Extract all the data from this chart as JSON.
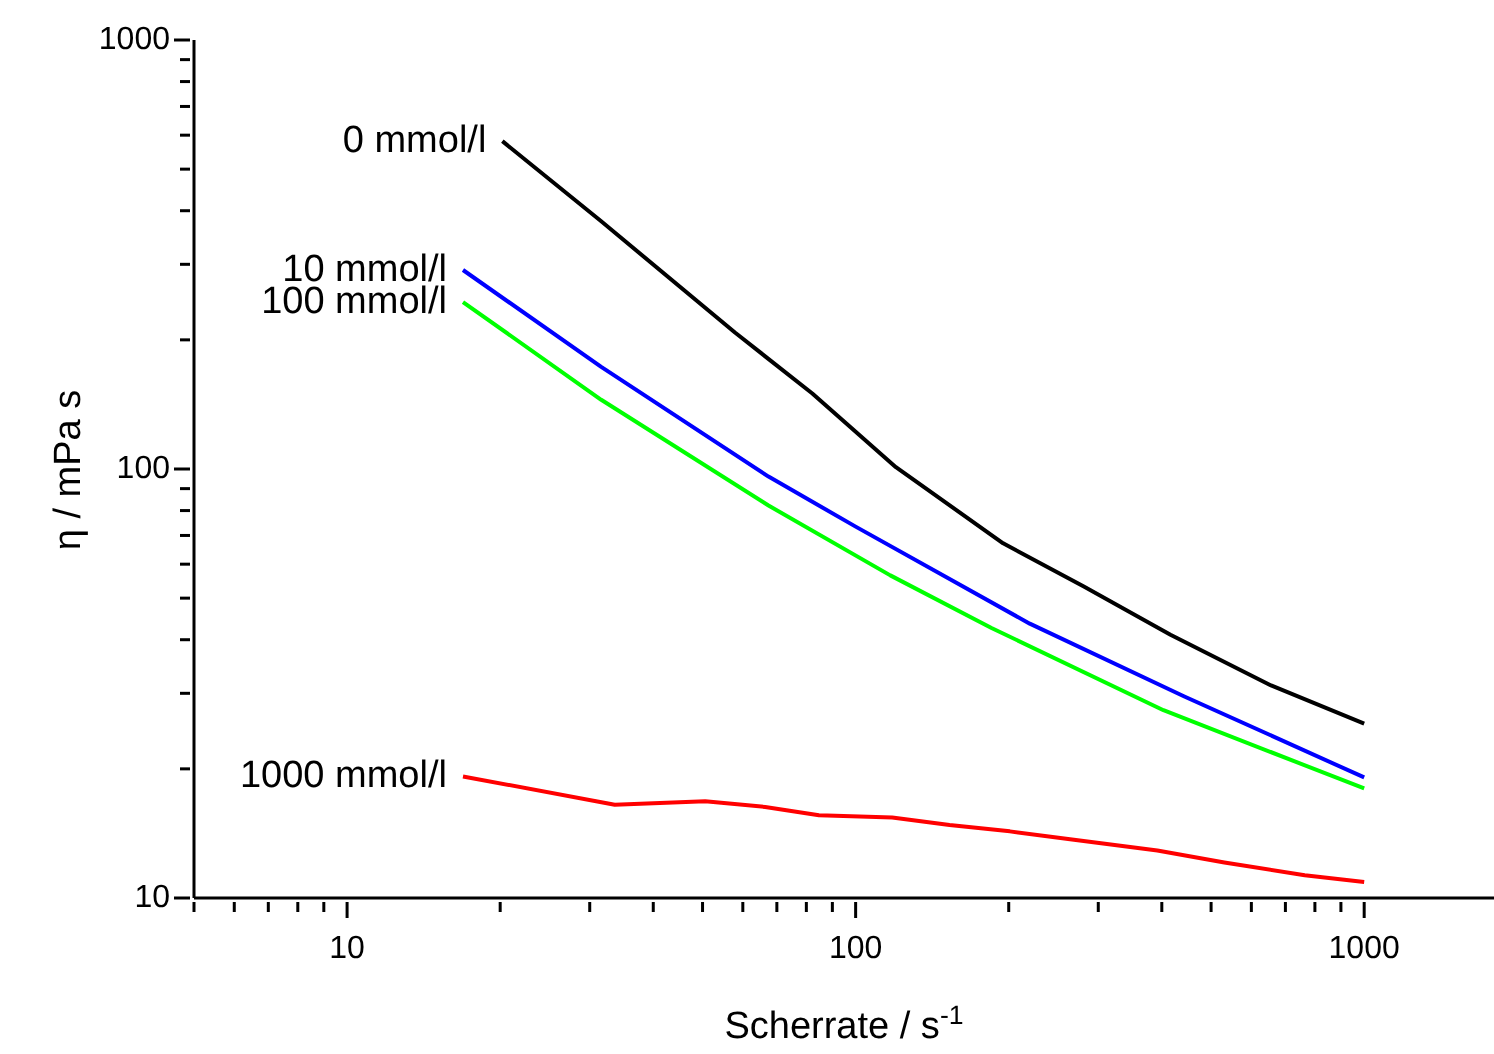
{
  "chart_data": {
    "type": "line",
    "xlabel": "Scherrate / s$^{-1}$",
    "ylabel": "η / mPa s",
    "log": "xy",
    "xlim": [
      5,
      1800
    ],
    "ylim": [
      10,
      1000
    ],
    "xticks": [
      {
        "value": 5,
        "label": null
      },
      {
        "value": 6,
        "label": null
      },
      {
        "value": 7,
        "label": null
      },
      {
        "value": 8,
        "label": null
      },
      {
        "value": 9,
        "label": null
      },
      10,
      {
        "value": 20,
        "label": null
      },
      {
        "value": 30,
        "label": null
      },
      {
        "value": 40,
        "label": null
      },
      {
        "value": 50,
        "label": null
      },
      {
        "value": 60,
        "label": null
      },
      {
        "value": 70,
        "label": null
      },
      {
        "value": 80,
        "label": null
      },
      {
        "value": 90,
        "label": null
      },
      100,
      {
        "value": 200,
        "label": null
      },
      {
        "value": 300,
        "label": null
      },
      {
        "value": 400,
        "label": null
      },
      {
        "value": 500,
        "label": null
      },
      {
        "value": 600,
        "label": null
      },
      {
        "value": 700,
        "label": null
      },
      {
        "value": 800,
        "label": null
      },
      {
        "value": 900,
        "label": null
      },
      1000
    ],
    "yticks": [
      10,
      {
        "value": 20,
        "label": null
      },
      {
        "value": 30,
        "label": null
      },
      {
        "value": 40,
        "label": null
      },
      {
        "value": 50,
        "label": null
      },
      {
        "value": 60,
        "label": null
      },
      {
        "value": 70,
        "label": null
      },
      {
        "value": 80,
        "label": null
      },
      {
        "value": 90,
        "label": null
      },
      100,
      {
        "value": 200,
        "label": null
      },
      {
        "value": 300,
        "label": null
      },
      {
        "value": 400,
        "label": null
      },
      {
        "value": 500,
        "label": null
      },
      {
        "value": 600,
        "label": null
      },
      {
        "value": 700,
        "label": null
      },
      {
        "value": 800,
        "label": null
      },
      {
        "value": 900,
        "label": null
      },
      1000
    ],
    "series": [
      {
        "name": "0 mmol/l",
        "color": "#000000",
        "x": [
          20.2,
          31.6,
          57.9,
          82.2,
          120,
          195,
          281,
          416,
          656,
          1000
        ],
        "values": [
          581,
          378,
          208,
          150,
          101,
          67.1,
          53.2,
          41.1,
          31.3,
          25.5
        ]
      },
      {
        "name": "10 mmol/l",
        "color": "#0000ff",
        "x": [
          16.9,
          31.6,
          67.4,
          100,
          220,
          443,
          1000
        ],
        "values": [
          291,
          173,
          96,
          73.4,
          43.6,
          29.5,
          19.1
        ]
      },
      {
        "name": "100 mmol/l",
        "color": "#00ff00",
        "x": [
          16.9,
          31.6,
          67.4,
          117,
          185,
          403,
          1000
        ],
        "values": [
          245,
          145,
          82.2,
          56.5,
          42.6,
          27.4,
          18
        ]
      },
      {
        "name": "1000 mmol/l",
        "color": "#ff0000",
        "x": [
          16.9,
          33.6,
          50.6,
          66.4,
          84.7,
          118,
          153,
          201,
          264,
          392,
          531,
          764,
          1000
        ],
        "values": [
          19.2,
          16.5,
          16.8,
          16.3,
          15.6,
          15.4,
          14.8,
          14.3,
          13.7,
          12.9,
          12.1,
          11.3,
          10.9
        ]
      }
    ]
  }
}
